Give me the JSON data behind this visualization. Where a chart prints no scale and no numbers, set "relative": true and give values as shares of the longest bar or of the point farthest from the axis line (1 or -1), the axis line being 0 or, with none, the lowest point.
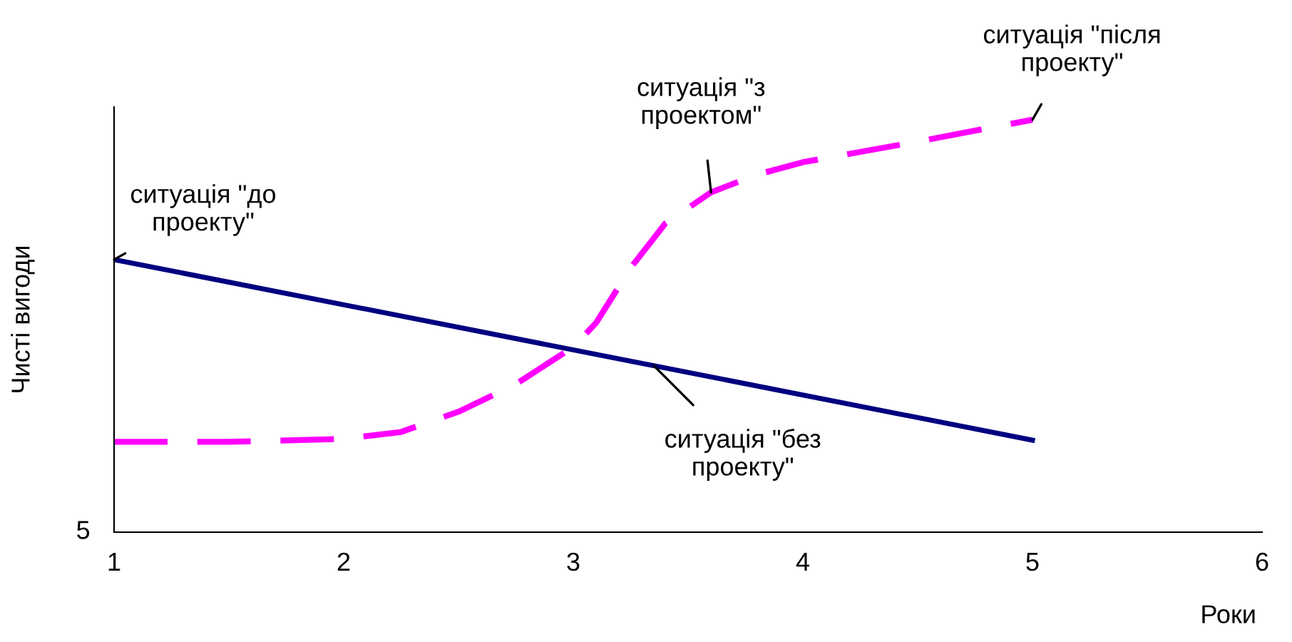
{
  "chart_data": {
    "type": "line",
    "relative": true,
    "xlabel": "Роки",
    "ylabel": "Чисті вигоди",
    "xlim": [
      1,
      6
    ],
    "xticks": [
      1,
      2,
      3,
      4,
      5,
      6
    ],
    "grid": false,
    "legend": false,
    "marker": "none",
    "series": [
      {
        "color": "#000080",
        "line_style": "solid",
        "x": [
          1,
          5
        ],
        "values": [
          0.661,
          0.223
        ]
      },
      {
        "color": "#ff00ff",
        "line_style": "dashed",
        "x": [
          1,
          1.5,
          2,
          2.25,
          2.5,
          2.75,
          3,
          3.1,
          3.25,
          3.4,
          3.6,
          3.8,
          4,
          4.5,
          5
        ],
        "values": [
          0.219,
          0.219,
          0.226,
          0.243,
          0.292,
          0.359,
          0.449,
          0.508,
          0.641,
          0.748,
          0.824,
          0.867,
          0.897,
          0.947,
          1.0
        ]
      }
    ],
    "annotations": [
      {
        "text": "ситуація \"до\nпроекту\"",
        "x": 1,
        "y": 0.661
      },
      {
        "text": "ситуація \"з\nпроектом\"",
        "x": 3.6,
        "y": 0.824
      },
      {
        "text": "ситуація \"після\nпроекту\"",
        "x": 5,
        "y": 1.0
      },
      {
        "text": "ситуація \"без\nпроекту\"",
        "x": 3.35,
        "y": 0.404
      },
      "5"
    ]
  }
}
